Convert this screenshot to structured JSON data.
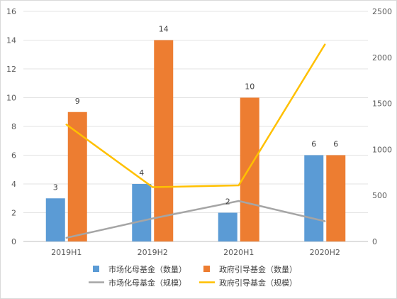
{
  "chart_data": {
    "type": "bar",
    "categories": [
      "2019H1",
      "2019H2",
      "2020H1",
      "2020H2"
    ],
    "y_left": {
      "min": 0,
      "max": 16,
      "ticks": [
        0,
        2,
        4,
        6,
        8,
        10,
        12,
        14,
        16
      ]
    },
    "y_right": {
      "min": 0,
      "max": 2500,
      "ticks": [
        0,
        500,
        1000,
        1500,
        2000,
        2500
      ]
    },
    "grid": true,
    "legend_position": "bottom",
    "series": [
      {
        "name": "市场化母基金（数量）",
        "kind": "bar",
        "axis": "left",
        "color": "#5b9bd5",
        "values": [
          3,
          4,
          2,
          6
        ],
        "data_labels": [
          "3",
          "4",
          "2",
          "6"
        ]
      },
      {
        "name": "政府引导基金（数量）",
        "kind": "bar",
        "axis": "left",
        "color": "#ed7d31",
        "values": [
          9,
          14,
          10,
          6
        ],
        "data_labels": [
          "9",
          "14",
          "10",
          "6"
        ]
      },
      {
        "name": "市场化母基金（规模）",
        "kind": "line",
        "axis": "right",
        "color": "#a5a5a5",
        "values": [
          40,
          250,
          440,
          220
        ]
      },
      {
        "name": "政府引导基金（规模）",
        "kind": "line",
        "axis": "right",
        "color": "#ffc000",
        "values": [
          1270,
          590,
          610,
          2140
        ]
      }
    ]
  }
}
